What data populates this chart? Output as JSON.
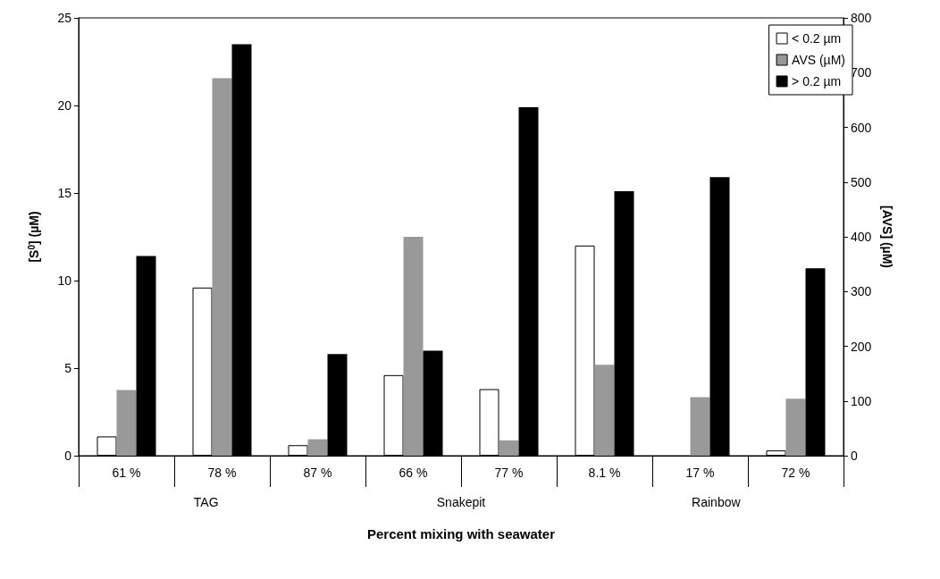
{
  "chart_data": {
    "type": "bar",
    "xlabel": "Percent mixing with seawater",
    "ylabel": "[S$^{0}$] (µM)",
    "y2label": "[AVS] (µM)",
    "categories": [
      "61 %",
      "78 %",
      "87 %",
      "66 %",
      "77 %",
      "8.1 %",
      "17 %",
      "72 %"
    ],
    "series": [
      {
        "name": "< 0.2 µm",
        "color": "#ffffff",
        "values": [
          1.1,
          9.6,
          0.6,
          4.6,
          3.8,
          12.0,
          null,
          0.3
        ]
      },
      {
        "name": "AVS (µM)",
        "color": "#999999",
        "axis": "y2",
        "values": [
          120,
          690,
          30,
          400,
          28,
          166,
          107,
          104
        ]
      },
      {
        "name": "> 0.2 µm",
        "color": "#000000",
        "values": [
          11.4,
          23.5,
          5.8,
          6.0,
          19.9,
          15.1,
          15.9,
          10.7
        ]
      }
    ],
    "ylim": [
      0,
      25
    ],
    "yticks": [
      0,
      5,
      10,
      15,
      20,
      25
    ],
    "y2lim": [
      0,
      800
    ],
    "y2ticks": [
      0,
      100,
      200,
      300,
      400,
      500,
      600,
      700,
      800
    ],
    "annotations": [
      "TAG",
      "Snakepit",
      "Rainbow"
    ],
    "grid": false,
    "legend": "top right"
  }
}
